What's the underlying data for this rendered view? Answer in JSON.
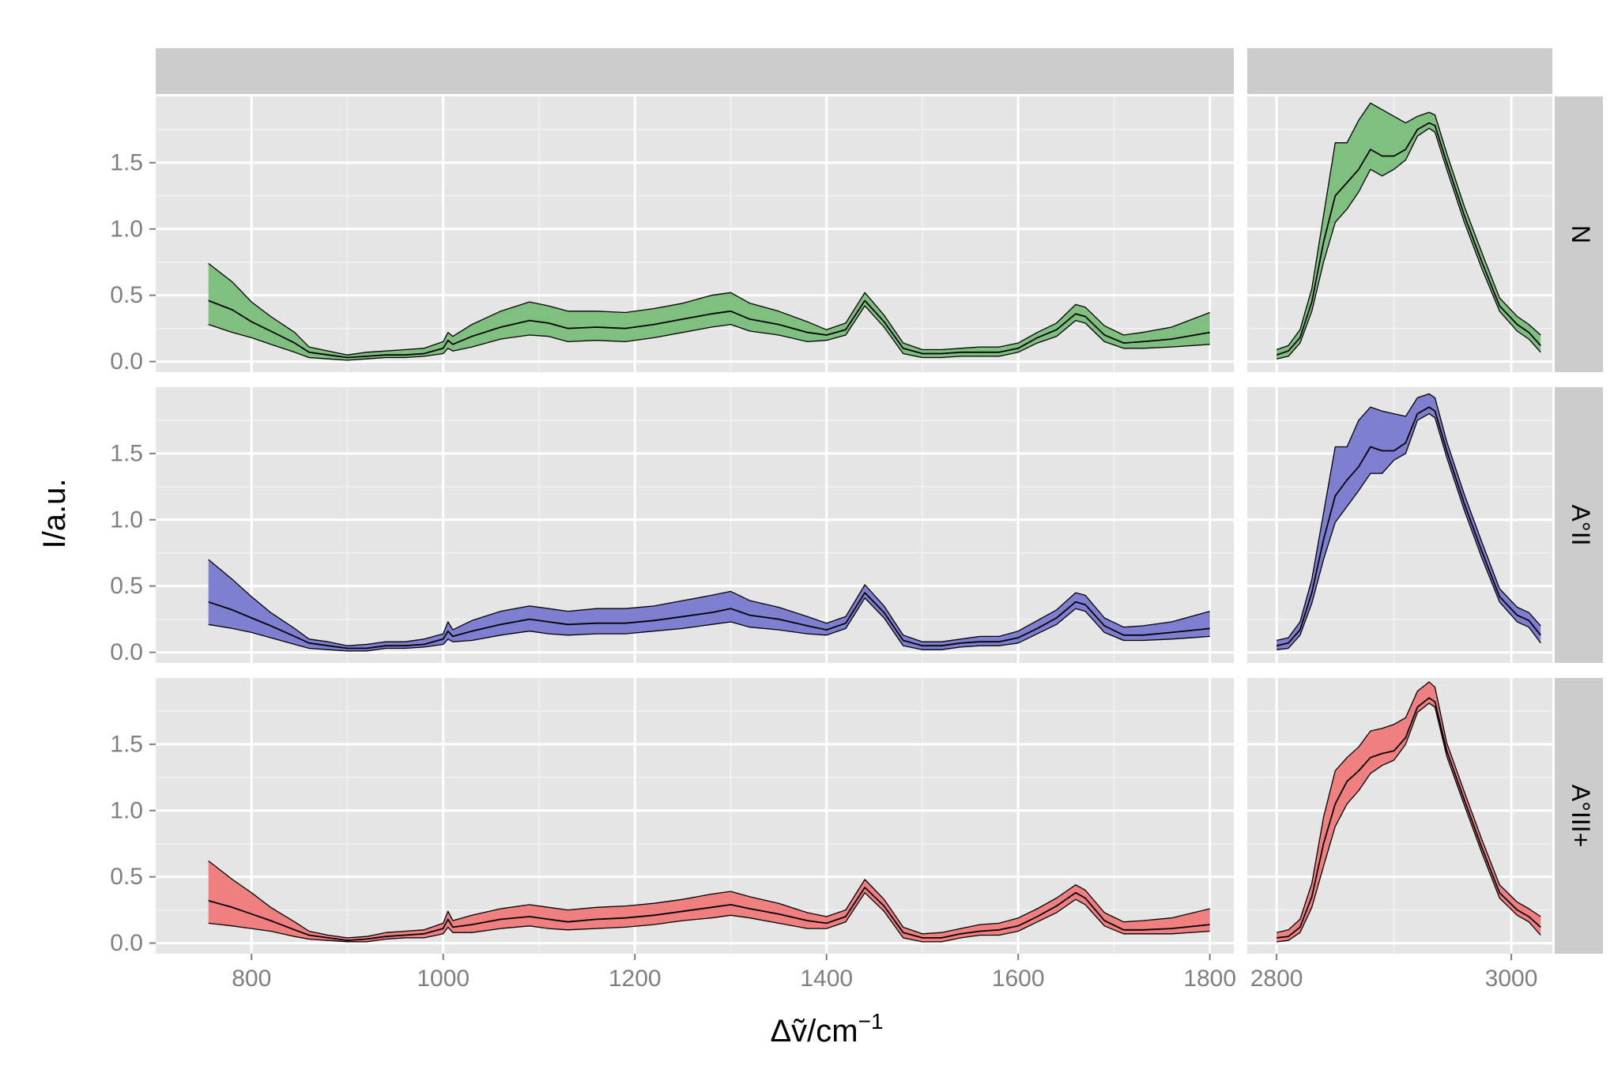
{
  "chart_data": {
    "type": "area",
    "xlabel_main": "Δṽ",
    "xlabel_sep": "/",
    "xlabel_unit": "cm",
    "xlabel_exp": "−1",
    "ylabel": "I/a.u.",
    "rows": [
      {
        "label": "N",
        "fill": "#7fbf7f"
      },
      {
        "label": "A°II",
        "fill": "#7f7fd2"
      },
      {
        "label": "A°III+",
        "fill": "#f08080"
      }
    ],
    "x_ranges": [
      [
        700,
        1825
      ],
      [
        2775,
        3035
      ]
    ],
    "y_range": [
      -0.08,
      2.0
    ],
    "x_ticks": [
      [
        800,
        1000,
        1200,
        1400,
        1600,
        1800
      ],
      [
        2800,
        3000
      ]
    ],
    "x_tick_labels": [
      [
        "800",
        "1000",
        "1200",
        "1400",
        "1600",
        "1800"
      ],
      [
        "2800",
        "3000"
      ]
    ],
    "y_ticks": [
      0.0,
      0.5,
      1.0,
      1.5
    ],
    "y_tick_labels": [
      "0.0",
      "0.5",
      "1.0",
      "1.5"
    ],
    "grid": true,
    "panel_background": "#e5e5e5",
    "strip_background": "#cccccc",
    "series": {
      "x_fingerprint": [
        755,
        780,
        800,
        820,
        845,
        860,
        880,
        900,
        920,
        940,
        960,
        980,
        1000,
        1005,
        1010,
        1030,
        1060,
        1090,
        1110,
        1130,
        1160,
        1190,
        1220,
        1250,
        1280,
        1300,
        1320,
        1350,
        1380,
        1400,
        1420,
        1440,
        1460,
        1480,
        1500,
        1520,
        1540,
        1560,
        1580,
        1600,
        1620,
        1640,
        1660,
        1670,
        1690,
        1710,
        1730,
        1760,
        1800
      ],
      "x_ch": [
        2800,
        2810,
        2820,
        2830,
        2840,
        2850,
        2860,
        2870,
        2880,
        2890,
        2900,
        2910,
        2920,
        2930,
        2935,
        2945,
        2960,
        2975,
        2990,
        3005,
        3015,
        3025
      ],
      "N": {
        "fp_mean": [
          0.46,
          0.39,
          0.3,
          0.23,
          0.14,
          0.07,
          0.05,
          0.03,
          0.04,
          0.05,
          0.05,
          0.06,
          0.1,
          0.16,
          0.13,
          0.19,
          0.26,
          0.31,
          0.29,
          0.25,
          0.26,
          0.25,
          0.28,
          0.32,
          0.36,
          0.38,
          0.32,
          0.28,
          0.22,
          0.2,
          0.24,
          0.46,
          0.3,
          0.1,
          0.06,
          0.06,
          0.07,
          0.07,
          0.07,
          0.1,
          0.18,
          0.24,
          0.36,
          0.34,
          0.2,
          0.14,
          0.15,
          0.17,
          0.22
        ],
        "fp_lo": [
          0.28,
          0.22,
          0.18,
          0.13,
          0.07,
          0.03,
          0.02,
          0.01,
          0.02,
          0.03,
          0.03,
          0.04,
          0.06,
          0.1,
          0.08,
          0.11,
          0.17,
          0.2,
          0.19,
          0.15,
          0.16,
          0.15,
          0.18,
          0.22,
          0.26,
          0.28,
          0.23,
          0.2,
          0.15,
          0.16,
          0.2,
          0.42,
          0.26,
          0.06,
          0.03,
          0.03,
          0.04,
          0.04,
          0.04,
          0.07,
          0.14,
          0.19,
          0.31,
          0.29,
          0.15,
          0.1,
          0.1,
          0.11,
          0.13
        ],
        "fp_hi": [
          0.74,
          0.6,
          0.45,
          0.34,
          0.22,
          0.11,
          0.08,
          0.05,
          0.07,
          0.08,
          0.09,
          0.1,
          0.15,
          0.22,
          0.19,
          0.28,
          0.38,
          0.45,
          0.42,
          0.38,
          0.38,
          0.37,
          0.4,
          0.44,
          0.5,
          0.52,
          0.44,
          0.38,
          0.3,
          0.24,
          0.29,
          0.52,
          0.35,
          0.14,
          0.09,
          0.09,
          0.1,
          0.11,
          0.11,
          0.14,
          0.22,
          0.29,
          0.43,
          0.41,
          0.27,
          0.2,
          0.22,
          0.26,
          0.37
        ],
        "ch_mean": [
          0.05,
          0.08,
          0.18,
          0.45,
          0.9,
          1.25,
          1.35,
          1.45,
          1.6,
          1.55,
          1.55,
          1.6,
          1.75,
          1.8,
          1.78,
          1.5,
          1.1,
          0.75,
          0.42,
          0.28,
          0.22,
          0.12
        ],
        "ch_lo": [
          0.02,
          0.04,
          0.14,
          0.38,
          0.75,
          1.05,
          1.15,
          1.28,
          1.45,
          1.4,
          1.45,
          1.52,
          1.7,
          1.76,
          1.73,
          1.45,
          1.05,
          0.7,
          0.38,
          0.23,
          0.17,
          0.07
        ],
        "ch_hi": [
          0.09,
          0.12,
          0.24,
          0.55,
          1.1,
          1.65,
          1.65,
          1.82,
          1.95,
          1.9,
          1.85,
          1.8,
          1.85,
          1.88,
          1.86,
          1.57,
          1.17,
          0.82,
          0.48,
          0.34,
          0.28,
          0.2
        ]
      },
      "A°II": {
        "fp_mean": [
          0.38,
          0.32,
          0.26,
          0.2,
          0.12,
          0.07,
          0.05,
          0.03,
          0.03,
          0.05,
          0.05,
          0.06,
          0.1,
          0.16,
          0.12,
          0.16,
          0.21,
          0.25,
          0.23,
          0.21,
          0.22,
          0.22,
          0.24,
          0.27,
          0.3,
          0.33,
          0.28,
          0.25,
          0.2,
          0.17,
          0.22,
          0.45,
          0.3,
          0.09,
          0.05,
          0.05,
          0.07,
          0.08,
          0.08,
          0.11,
          0.18,
          0.26,
          0.38,
          0.36,
          0.2,
          0.13,
          0.13,
          0.15,
          0.18
        ],
        "fp_lo": [
          0.21,
          0.18,
          0.15,
          0.11,
          0.06,
          0.03,
          0.02,
          0.01,
          0.01,
          0.03,
          0.03,
          0.04,
          0.06,
          0.1,
          0.08,
          0.09,
          0.13,
          0.16,
          0.14,
          0.13,
          0.14,
          0.14,
          0.16,
          0.18,
          0.21,
          0.23,
          0.19,
          0.17,
          0.14,
          0.13,
          0.18,
          0.41,
          0.26,
          0.05,
          0.02,
          0.02,
          0.04,
          0.05,
          0.05,
          0.07,
          0.14,
          0.21,
          0.33,
          0.31,
          0.15,
          0.09,
          0.09,
          0.1,
          0.12
        ],
        "fp_hi": [
          0.7,
          0.55,
          0.42,
          0.3,
          0.18,
          0.1,
          0.08,
          0.05,
          0.06,
          0.08,
          0.08,
          0.1,
          0.14,
          0.23,
          0.17,
          0.24,
          0.31,
          0.35,
          0.33,
          0.31,
          0.33,
          0.33,
          0.35,
          0.39,
          0.43,
          0.46,
          0.39,
          0.34,
          0.27,
          0.22,
          0.27,
          0.51,
          0.35,
          0.13,
          0.08,
          0.08,
          0.1,
          0.12,
          0.12,
          0.16,
          0.24,
          0.32,
          0.45,
          0.43,
          0.26,
          0.19,
          0.2,
          0.23,
          0.31
        ],
        "ch_mean": [
          0.05,
          0.07,
          0.17,
          0.45,
          0.85,
          1.18,
          1.3,
          1.4,
          1.55,
          1.52,
          1.52,
          1.58,
          1.8,
          1.85,
          1.82,
          1.52,
          1.12,
          0.76,
          0.42,
          0.28,
          0.24,
          0.13
        ],
        "ch_lo": [
          0.02,
          0.03,
          0.13,
          0.37,
          0.7,
          0.98,
          1.1,
          1.22,
          1.35,
          1.35,
          1.45,
          1.5,
          1.75,
          1.8,
          1.77,
          1.47,
          1.07,
          0.71,
          0.38,
          0.23,
          0.19,
          0.07
        ],
        "ch_hi": [
          0.09,
          0.11,
          0.23,
          0.55,
          1.05,
          1.55,
          1.55,
          1.75,
          1.85,
          1.82,
          1.8,
          1.78,
          1.92,
          1.95,
          1.92,
          1.59,
          1.19,
          0.83,
          0.48,
          0.34,
          0.3,
          0.2
        ]
      },
      "A°III+": {
        "fp_mean": [
          0.32,
          0.27,
          0.22,
          0.17,
          0.1,
          0.06,
          0.04,
          0.02,
          0.03,
          0.05,
          0.06,
          0.07,
          0.11,
          0.18,
          0.12,
          0.14,
          0.18,
          0.2,
          0.18,
          0.16,
          0.18,
          0.19,
          0.21,
          0.24,
          0.27,
          0.29,
          0.26,
          0.22,
          0.17,
          0.15,
          0.2,
          0.42,
          0.28,
          0.08,
          0.04,
          0.04,
          0.07,
          0.09,
          0.1,
          0.13,
          0.2,
          0.28,
          0.38,
          0.34,
          0.17,
          0.1,
          0.1,
          0.11,
          0.14
        ],
        "fp_lo": [
          0.15,
          0.13,
          0.11,
          0.09,
          0.05,
          0.03,
          0.02,
          0.01,
          0.01,
          0.03,
          0.04,
          0.04,
          0.07,
          0.12,
          0.08,
          0.08,
          0.11,
          0.13,
          0.11,
          0.1,
          0.11,
          0.12,
          0.14,
          0.17,
          0.19,
          0.21,
          0.19,
          0.15,
          0.11,
          0.11,
          0.16,
          0.38,
          0.24,
          0.04,
          0.01,
          0.01,
          0.04,
          0.06,
          0.06,
          0.09,
          0.16,
          0.23,
          0.33,
          0.29,
          0.13,
          0.07,
          0.07,
          0.07,
          0.09
        ],
        "fp_hi": [
          0.62,
          0.48,
          0.38,
          0.27,
          0.16,
          0.09,
          0.06,
          0.04,
          0.05,
          0.08,
          0.09,
          0.1,
          0.15,
          0.24,
          0.17,
          0.21,
          0.26,
          0.29,
          0.27,
          0.25,
          0.27,
          0.28,
          0.3,
          0.33,
          0.37,
          0.39,
          0.35,
          0.3,
          0.23,
          0.2,
          0.25,
          0.48,
          0.33,
          0.12,
          0.07,
          0.08,
          0.11,
          0.14,
          0.15,
          0.19,
          0.26,
          0.34,
          0.44,
          0.4,
          0.23,
          0.16,
          0.17,
          0.19,
          0.26
        ],
        "ch_mean": [
          0.04,
          0.05,
          0.12,
          0.35,
          0.75,
          1.05,
          1.22,
          1.3,
          1.4,
          1.43,
          1.45,
          1.55,
          1.78,
          1.85,
          1.82,
          1.45,
          1.08,
          0.72,
          0.38,
          0.25,
          0.2,
          0.12
        ],
        "ch_lo": [
          0.01,
          0.02,
          0.08,
          0.27,
          0.58,
          0.88,
          1.05,
          1.15,
          1.28,
          1.34,
          1.38,
          1.5,
          1.74,
          1.81,
          1.78,
          1.41,
          1.04,
          0.68,
          0.34,
          0.21,
          0.16,
          0.06
        ],
        "ch_hi": [
          0.08,
          0.1,
          0.18,
          0.45,
          0.95,
          1.3,
          1.4,
          1.48,
          1.6,
          1.62,
          1.65,
          1.7,
          1.9,
          1.97,
          1.93,
          1.51,
          1.14,
          0.78,
          0.44,
          0.31,
          0.26,
          0.2
        ]
      }
    }
  }
}
